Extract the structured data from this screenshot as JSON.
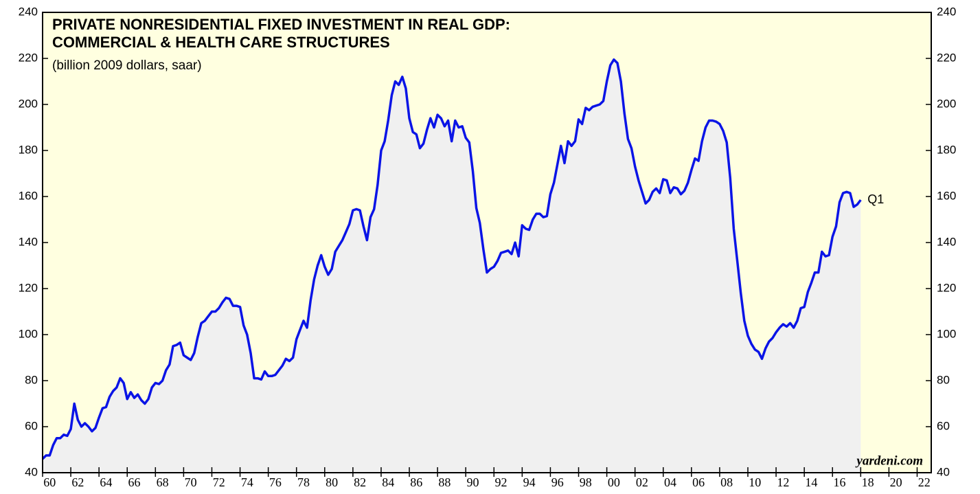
{
  "chart_data": {
    "type": "line",
    "title": "PRIVATE NONRESIDENTIAL FIXED INVESTMENT IN REAL GDP:",
    "title_line2": "COMMERCIAL & HEALTH CARE STRUCTURES",
    "subtitle": "(billion 2009 dollars, saar)",
    "source": "yardeni.com",
    "annotation": "Q1",
    "x": [
      1960,
      1960.25,
      1960.5,
      1960.75,
      1961,
      1961.25,
      1961.5,
      1961.75,
      1962,
      1962.25,
      1962.5,
      1962.75,
      1963,
      1963.25,
      1963.5,
      1963.75,
      1964,
      1964.25,
      1964.5,
      1964.75,
      1965,
      1965.25,
      1965.5,
      1965.75,
      1966,
      1966.25,
      1966.5,
      1966.75,
      1967,
      1967.25,
      1967.5,
      1967.75,
      1968,
      1968.25,
      1968.5,
      1968.75,
      1969,
      1969.25,
      1969.5,
      1969.75,
      1970,
      1970.25,
      1970.5,
      1970.75,
      1971,
      1971.25,
      1971.5,
      1971.75,
      1972,
      1972.25,
      1972.5,
      1972.75,
      1973,
      1973.25,
      1973.5,
      1973.75,
      1974,
      1974.25,
      1974.5,
      1974.75,
      1975,
      1975.25,
      1975.5,
      1975.75,
      1976,
      1976.25,
      1976.5,
      1976.75,
      1977,
      1977.25,
      1977.5,
      1977.75,
      1978,
      1978.25,
      1978.5,
      1978.75,
      1979,
      1979.25,
      1979.5,
      1979.75,
      1980,
      1980.25,
      1980.5,
      1980.75,
      1981,
      1981.25,
      1981.5,
      1981.75,
      1982,
      1982.25,
      1982.5,
      1982.75,
      1983,
      1983.25,
      1983.5,
      1983.75,
      1984,
      1984.25,
      1984.5,
      1984.75,
      1985,
      1985.25,
      1985.5,
      1985.75,
      1986,
      1986.25,
      1986.5,
      1986.75,
      1987,
      1987.25,
      1987.5,
      1987.75,
      1988,
      1988.25,
      1988.5,
      1988.75,
      1989,
      1989.25,
      1989.5,
      1989.75,
      1990,
      1990.25,
      1990.5,
      1990.75,
      1991,
      1991.25,
      1991.5,
      1991.75,
      1992,
      1992.25,
      1992.5,
      1992.75,
      1993,
      1993.25,
      1993.5,
      1993.75,
      1994,
      1994.25,
      1994.5,
      1994.75,
      1995,
      1995.25,
      1995.5,
      1995.75,
      1996,
      1996.25,
      1996.5,
      1996.75,
      1997,
      1997.25,
      1997.5,
      1997.75,
      1998,
      1998.25,
      1998.5,
      1998.75,
      1999,
      1999.25,
      1999.5,
      1999.75,
      2000,
      2000.25,
      2000.5,
      2000.75,
      2001,
      2001.25,
      2001.5,
      2001.75,
      2002,
      2002.25,
      2002.5,
      2002.75,
      2003,
      2003.25,
      2003.5,
      2003.75,
      2004,
      2004.25,
      2004.5,
      2004.75,
      2005,
      2005.25,
      2005.5,
      2005.75,
      2006,
      2006.25,
      2006.5,
      2006.75,
      2007,
      2007.25,
      2007.5,
      2007.75,
      2008,
      2008.25,
      2008.5,
      2008.75,
      2009,
      2009.25,
      2009.5,
      2009.75,
      2010,
      2010.25,
      2010.5,
      2010.75,
      2011,
      2011.25,
      2011.5,
      2011.75,
      2012,
      2012.25,
      2012.5,
      2012.75,
      2013,
      2013.25,
      2013.5,
      2013.75,
      2014,
      2014.25,
      2014.5,
      2014.75,
      2015,
      2015.25,
      2015.5,
      2015.75,
      2016,
      2016.25,
      2016.5,
      2016.75,
      2017,
      2017.25,
      2017.5,
      2017.75,
      2018
    ],
    "series": [
      {
        "name": "Commercial & health care structures",
        "color": "#0a14e6",
        "area_color": "#f0f0f0",
        "values": [
          46,
          47.5,
          47.5,
          52,
          55,
          55,
          56.5,
          56,
          59,
          70,
          63,
          60,
          61.5,
          60,
          58,
          59.5,
          64,
          68,
          68.5,
          73,
          75.5,
          77,
          81,
          79,
          72,
          75,
          72.5,
          74,
          71.5,
          70,
          72,
          77,
          79,
          78.5,
          80,
          84.5,
          87,
          95,
          95.5,
          96.5,
          91,
          90,
          89,
          92,
          99,
          105,
          106,
          108,
          110,
          110,
          111.5,
          114,
          116,
          115.5,
          112.5,
          112.5,
          112,
          104,
          100,
          92,
          81,
          81,
          80.5,
          84,
          82,
          82,
          82.5,
          84.5,
          86.5,
          89.5,
          88.5,
          90,
          98,
          102,
          106,
          103,
          115,
          124,
          130,
          134.5,
          129.5,
          126,
          128.5,
          136,
          138.5,
          141,
          144.5,
          148,
          154,
          154.5,
          154,
          147,
          141,
          151,
          154.5,
          165,
          180,
          184,
          193,
          204,
          210,
          208.5,
          212,
          207,
          194,
          188,
          187,
          181,
          183,
          189,
          194,
          190,
          195.5,
          194,
          190.5,
          193,
          184,
          193,
          190,
          190.5,
          185.5,
          183.5,
          171,
          155,
          148.5,
          137,
          127,
          128.5,
          129.5,
          132,
          135.5,
          136,
          136.5,
          135,
          140,
          134,
          147.5,
          146,
          145.5,
          150,
          152.5,
          152.5,
          151,
          151.5,
          161,
          166,
          174,
          182,
          174.5,
          184,
          182,
          184,
          193.5,
          191.5,
          198.5,
          197.5,
          199,
          199.5,
          200,
          201.5,
          210,
          217,
          219.5,
          218,
          210,
          196,
          185,
          181,
          173,
          167,
          162,
          157,
          158.5,
          162,
          163.5,
          161.5,
          167.5,
          167,
          161.5,
          164,
          163.5,
          161,
          162.5,
          166,
          171.5,
          176.5,
          175.5,
          184,
          190,
          193,
          193,
          192.5,
          191.5,
          188.5,
          183.5,
          168,
          146,
          132,
          118,
          106,
          99.5,
          96,
          93.5,
          92.5,
          89.5,
          94,
          97,
          98.5,
          101,
          103,
          104.5,
          103.5,
          105,
          103,
          106,
          111.5,
          112,
          118.5,
          122.5,
          127,
          127,
          136,
          134,
          134.5,
          142.5,
          147,
          157.5,
          161.5,
          162,
          161.5,
          155.5,
          156.5,
          158.5
        ]
      }
    ],
    "xlim": [
      1960,
      2023
    ],
    "xticks": [
      {
        "value": 1960.5,
        "label": "60"
      },
      {
        "value": 1962.5,
        "label": "62"
      },
      {
        "value": 1964.5,
        "label": "64"
      },
      {
        "value": 1966.5,
        "label": "66"
      },
      {
        "value": 1968.5,
        "label": "68"
      },
      {
        "value": 1970.5,
        "label": "70"
      },
      {
        "value": 1972.5,
        "label": "72"
      },
      {
        "value": 1974.5,
        "label": "74"
      },
      {
        "value": 1976.5,
        "label": "76"
      },
      {
        "value": 1978.5,
        "label": "78"
      },
      {
        "value": 1980.5,
        "label": "80"
      },
      {
        "value": 1982.5,
        "label": "82"
      },
      {
        "value": 1984.5,
        "label": "84"
      },
      {
        "value": 1986.5,
        "label": "86"
      },
      {
        "value": 1988.5,
        "label": "88"
      },
      {
        "value": 1990.5,
        "label": "90"
      },
      {
        "value": 1992.5,
        "label": "92"
      },
      {
        "value": 1994.5,
        "label": "94"
      },
      {
        "value": 1996.5,
        "label": "96"
      },
      {
        "value": 1998.5,
        "label": "98"
      },
      {
        "value": 2000.5,
        "label": "00"
      },
      {
        "value": 2002.5,
        "label": "02"
      },
      {
        "value": 2004.5,
        "label": "04"
      },
      {
        "value": 2006.5,
        "label": "06"
      },
      {
        "value": 2008.5,
        "label": "08"
      },
      {
        "value": 2010.5,
        "label": "10"
      },
      {
        "value": 2012.5,
        "label": "12"
      },
      {
        "value": 2014.5,
        "label": "14"
      },
      {
        "value": 2016.5,
        "label": "16"
      },
      {
        "value": 2018.5,
        "label": "18"
      },
      {
        "value": 2020.5,
        "label": "20"
      },
      {
        "value": 2022.5,
        "label": "22"
      }
    ],
    "ylim": [
      40,
      240
    ],
    "yticks": [
      40,
      60,
      80,
      100,
      120,
      140,
      160,
      180,
      200,
      220,
      240
    ],
    "background": "#ffffe0",
    "grid": false
  }
}
